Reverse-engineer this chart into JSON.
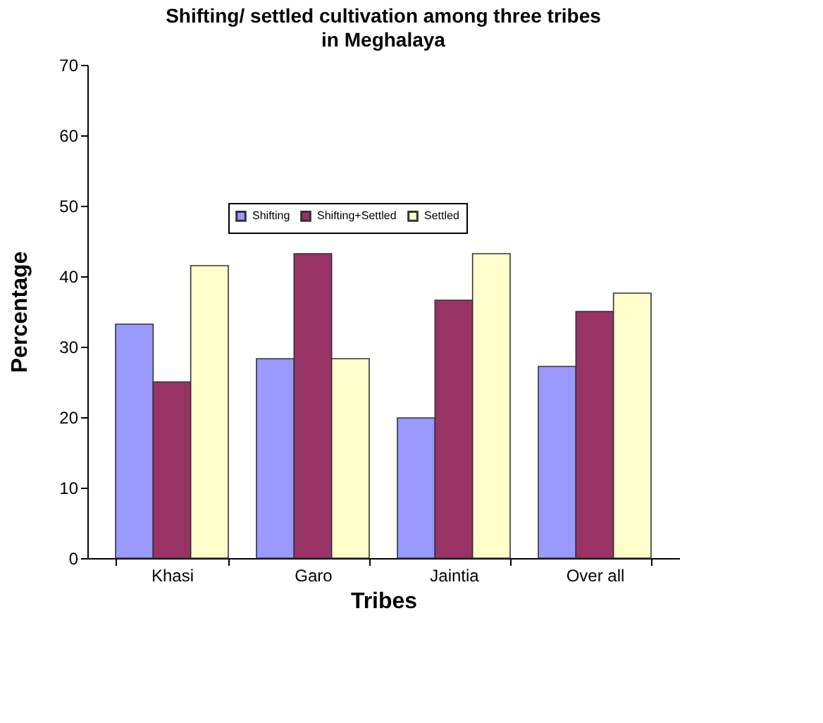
{
  "chart_data": {
    "type": "bar",
    "title": "Shifting/ settled cultivation among three tribes in Meghalaya",
    "xlabel": "Tribes",
    "ylabel": "Percentage",
    "categories": [
      "Khasi",
      "Garo",
      "Jaintia",
      "Over all"
    ],
    "series": [
      {
        "name": "Shifting",
        "color": "#9999ff",
        "values": [
          33.2,
          28.3,
          19.9,
          27.2
        ]
      },
      {
        "name": "Shifting+Settled",
        "color": "#993366",
        "values": [
          25.0,
          43.2,
          36.6,
          35.0
        ]
      },
      {
        "name": "Settled",
        "color": "#ffffcc",
        "values": [
          41.5,
          28.3,
          43.2,
          37.6
        ]
      }
    ],
    "ylim": [
      0,
      70
    ],
    "yticks": [
      0,
      10,
      20,
      30,
      40,
      50,
      60,
      70
    ],
    "grid": false,
    "legend": "top"
  }
}
